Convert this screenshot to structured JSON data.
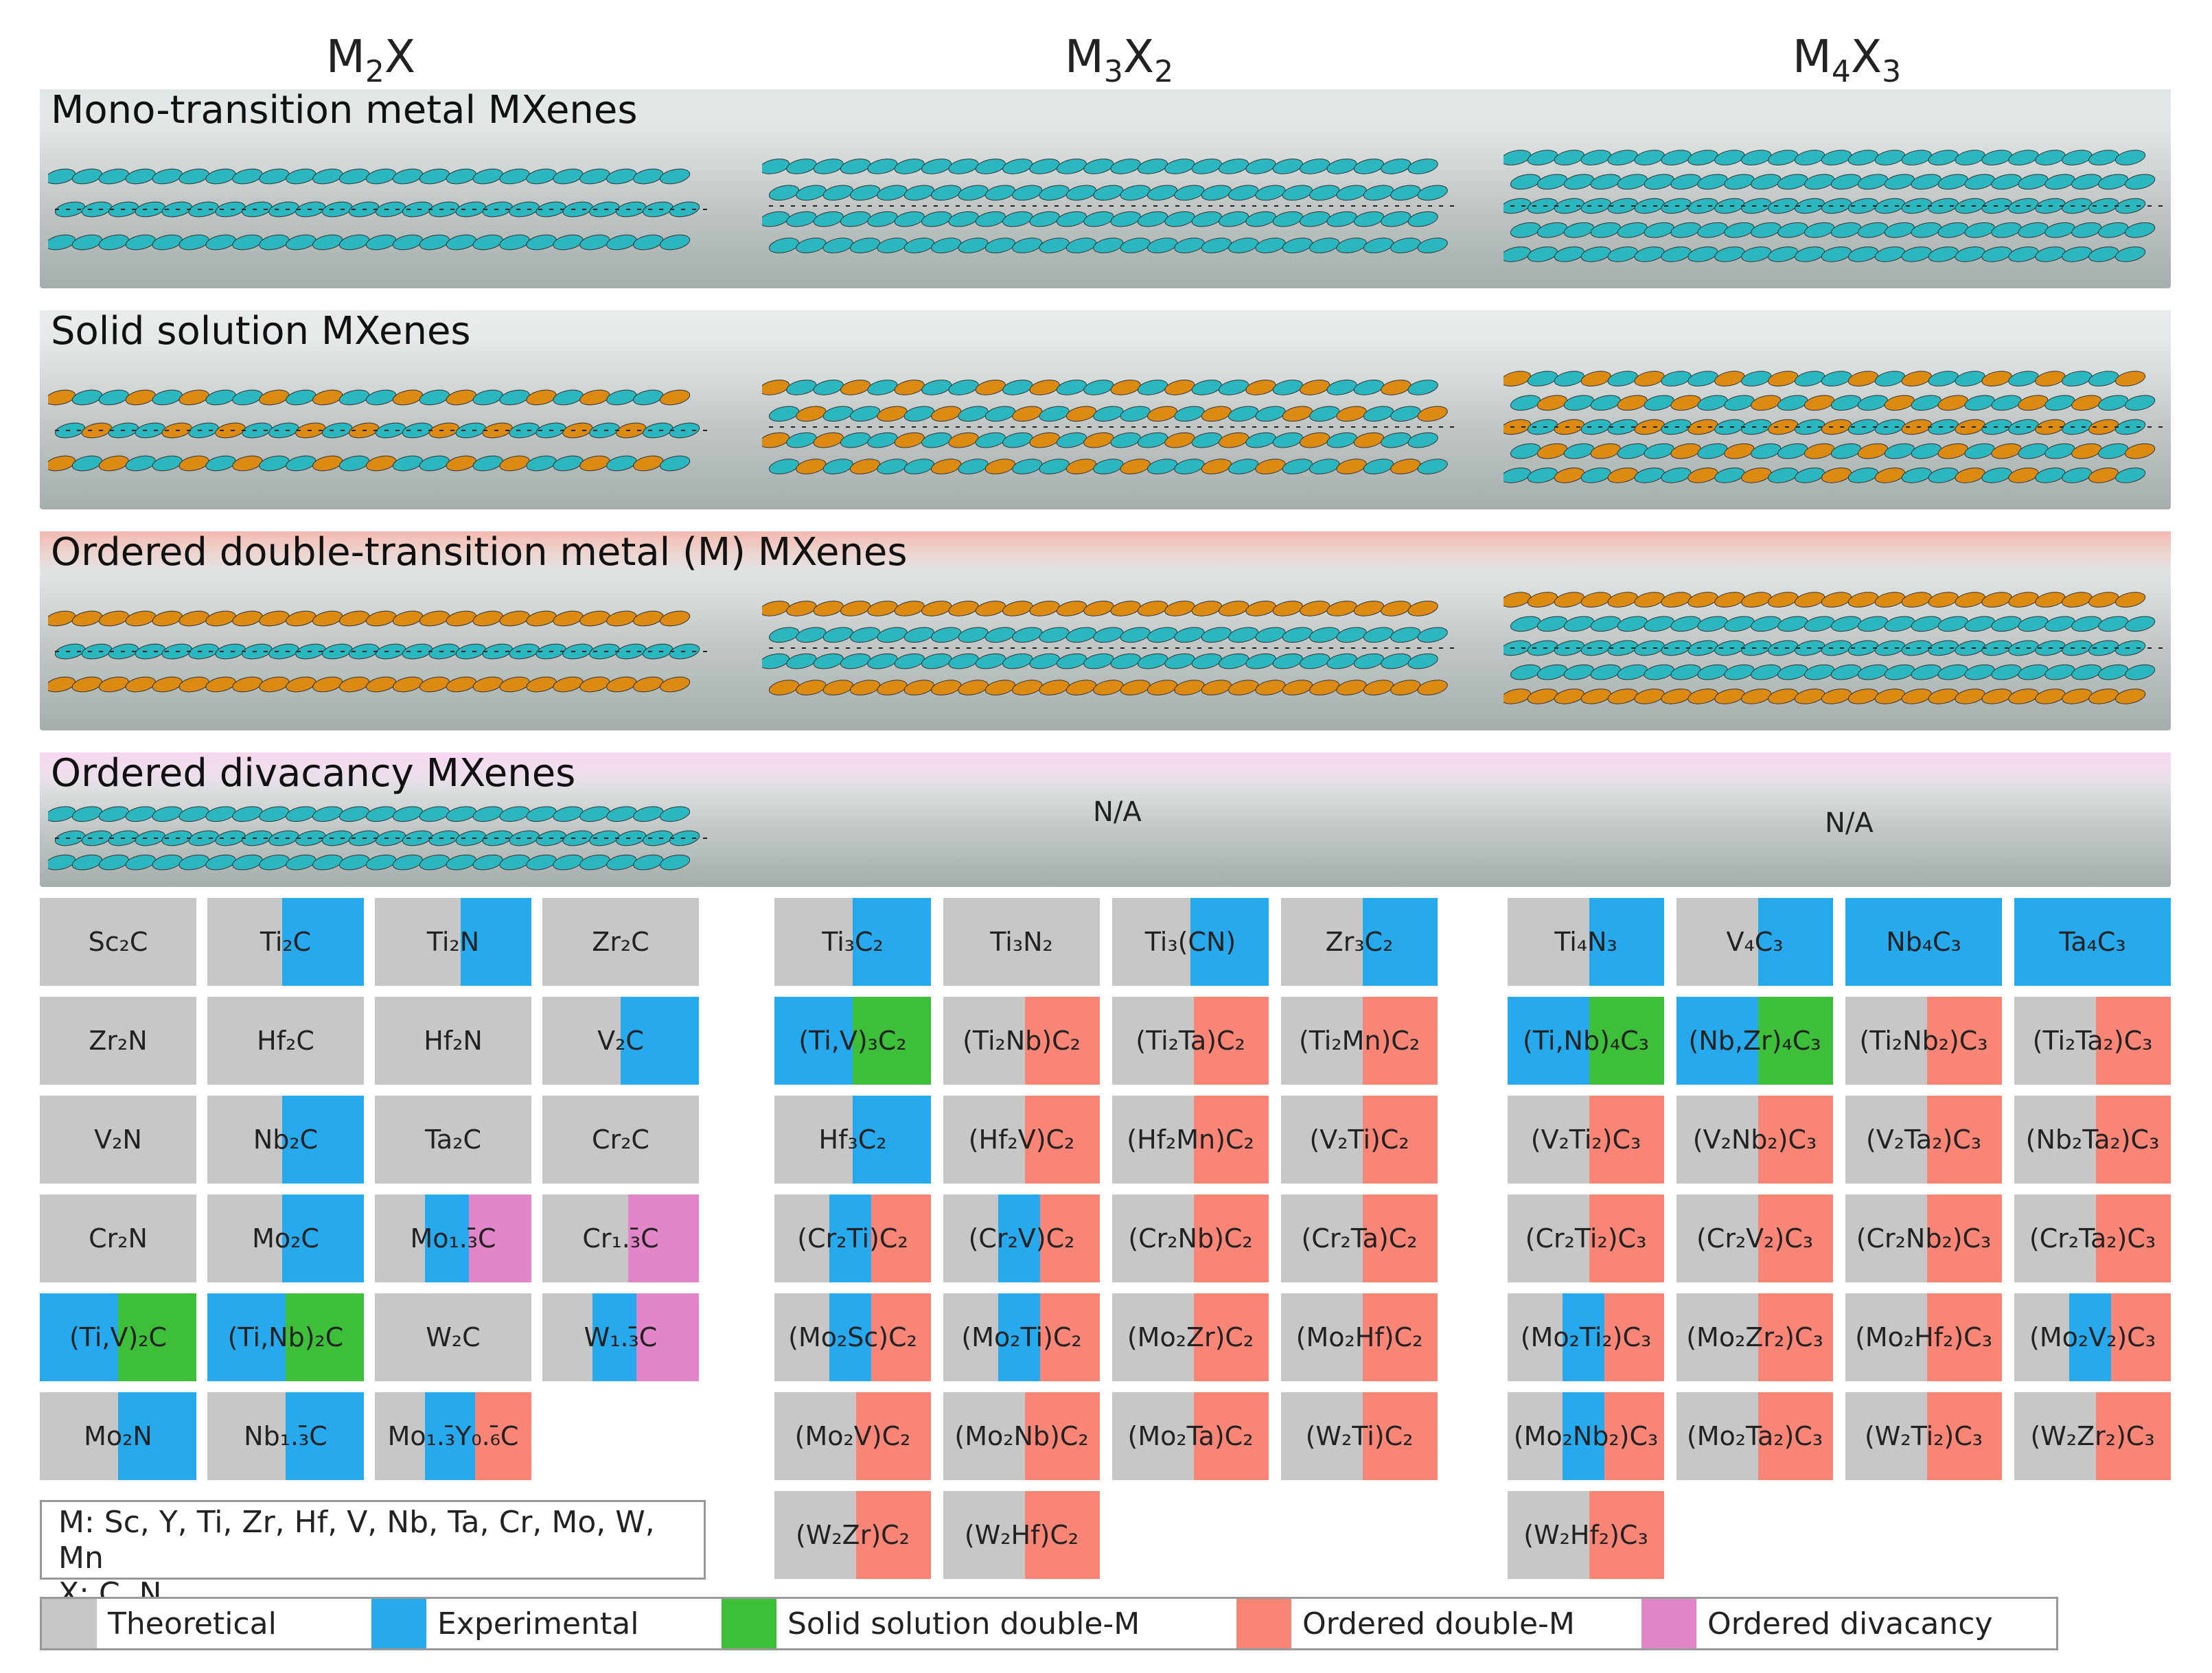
{
  "columns": [
    {
      "base": "M",
      "sub1": "2",
      "mid": "X",
      "sub2": ""
    },
    {
      "base": "M",
      "sub1": "3",
      "mid": "X",
      "sub2": "2"
    },
    {
      "base": "M",
      "sub1": "4",
      "mid": "X",
      "sub2": "3"
    }
  ],
  "bands": [
    {
      "title": "Mono-transition metal MXenes",
      "strip": "#dfe6e6"
    },
    {
      "title": "Solid solution MXenes",
      "strip": "#e6eaea"
    },
    {
      "title": "Ordered double-transition metal (M) MXenes",
      "strip": "#f3b9ae"
    },
    {
      "title": "Ordered divacancy MXenes",
      "strip": "#f6d6ef"
    }
  ],
  "na_label": "N/A",
  "colors": {
    "theoretical": "#c7c7c7",
    "experimental": "#27a9ee",
    "solid_solution": "#3dbf3a",
    "ordered": "#f98577",
    "divacancy": "#e386c9",
    "teal": "#2bb7bf",
    "orange": "#dc8a12"
  },
  "cells": {
    "m2x": [
      {
        "label": "Sc₂C",
        "segs": []
      },
      {
        "label": "Ti₂C",
        "segs": [
          [
            "experimental",
            0.48,
            1
          ]
        ]
      },
      {
        "label": "Ti₂N",
        "segs": [
          [
            "experimental",
            0.55,
            1
          ]
        ]
      },
      {
        "label": "Zr₂C",
        "segs": []
      },
      {
        "label": "Zr₂N",
        "segs": []
      },
      {
        "label": "Hf₂C",
        "segs": []
      },
      {
        "label": "Hf₂N",
        "segs": []
      },
      {
        "label": "V₂C",
        "segs": [
          [
            "experimental",
            0.5,
            1
          ]
        ]
      },
      {
        "label": "V₂N",
        "segs": []
      },
      {
        "label": "Nb₂C",
        "segs": [
          [
            "experimental",
            0.48,
            1
          ]
        ]
      },
      {
        "label": "Ta₂C",
        "segs": []
      },
      {
        "label": "Cr₂C",
        "segs": []
      },
      {
        "label": "Cr₂N",
        "segs": []
      },
      {
        "label": "Mo₂C",
        "segs": [
          [
            "experimental",
            0.48,
            1
          ]
        ]
      },
      {
        "label": "Mo₁.₃̄C",
        "segs": [
          [
            "experimental",
            0.32,
            0.6
          ],
          [
            "divacancy",
            0.6,
            1
          ]
        ]
      },
      {
        "label": "Cr₁.₃̄C",
        "segs": [
          [
            "divacancy",
            0.55,
            1
          ]
        ]
      },
      {
        "label": "(Ti,V)₂C",
        "segs": [
          [
            "experimental",
            0,
            0.5
          ],
          [
            "solid_solution",
            0.5,
            1
          ]
        ]
      },
      {
        "label": "(Ti,Nb)₂C",
        "segs": [
          [
            "experimental",
            0,
            0.5
          ],
          [
            "solid_solution",
            0.5,
            1
          ]
        ]
      },
      {
        "label": "W₂C",
        "segs": []
      },
      {
        "label": "W₁.₃̄C",
        "segs": [
          [
            "experimental",
            0.32,
            0.6
          ],
          [
            "divacancy",
            0.6,
            1
          ]
        ]
      },
      {
        "label": "Mo₂N",
        "segs": [
          [
            "experimental",
            0.5,
            1
          ]
        ]
      },
      {
        "label": "Nb₁.₃̄C",
        "segs": [
          [
            "experimental",
            0.5,
            1
          ]
        ]
      },
      {
        "label": "Mo₁.₃̄Y₀.₆̄C",
        "segs": [
          [
            "experimental",
            0.32,
            0.64
          ],
          [
            "ordered",
            0.64,
            1
          ]
        ]
      }
    ],
    "m3x2": [
      {
        "label": "Ti₃C₂",
        "segs": [
          [
            "experimental",
            0.5,
            1
          ]
        ]
      },
      {
        "label": "Ti₃N₂",
        "segs": []
      },
      {
        "label": "Ti₃(CN)",
        "segs": [
          [
            "experimental",
            0.5,
            1
          ]
        ]
      },
      {
        "label": "Zr₃C₂",
        "segs": [
          [
            "experimental",
            0.52,
            1
          ]
        ]
      },
      {
        "label": "(Ti,V)₃C₂",
        "segs": [
          [
            "experimental",
            0,
            0.5
          ],
          [
            "solid_solution",
            0.5,
            1
          ]
        ]
      },
      {
        "label": "(Ti₂Nb)C₂",
        "segs": [
          [
            "ordered",
            0.52,
            1
          ]
        ]
      },
      {
        "label": "(Ti₂Ta)C₂",
        "segs": [
          [
            "ordered",
            0.52,
            1
          ]
        ]
      },
      {
        "label": "(Ti₂Mn)C₂",
        "segs": [
          [
            "ordered",
            0.52,
            1
          ]
        ]
      },
      {
        "label": "Hf₃C₂",
        "segs": [
          [
            "experimental",
            0.5,
            1
          ]
        ]
      },
      {
        "label": "(Hf₂V)C₂",
        "segs": [
          [
            "ordered",
            0.52,
            1
          ]
        ]
      },
      {
        "label": "(Hf₂Mn)C₂",
        "segs": [
          [
            "ordered",
            0.52,
            1
          ]
        ]
      },
      {
        "label": "(V₂Ti)C₂",
        "segs": [
          [
            "ordered",
            0.52,
            1
          ]
        ]
      },
      {
        "label": "(Cr₂Ti)C₂",
        "segs": [
          [
            "experimental",
            0.35,
            0.62
          ],
          [
            "ordered",
            0.62,
            1
          ]
        ]
      },
      {
        "label": "(Cr₂V)C₂",
        "segs": [
          [
            "experimental",
            0.35,
            0.62
          ],
          [
            "ordered",
            0.62,
            1
          ]
        ]
      },
      {
        "label": "(Cr₂Nb)C₂",
        "segs": [
          [
            "ordered",
            0.52,
            1
          ]
        ]
      },
      {
        "label": "(Cr₂Ta)C₂",
        "segs": [
          [
            "ordered",
            0.52,
            1
          ]
        ]
      },
      {
        "label": "(Mo₂Sc)C₂",
        "segs": [
          [
            "experimental",
            0.35,
            0.62
          ],
          [
            "ordered",
            0.62,
            1
          ]
        ]
      },
      {
        "label": "(Mo₂Ti)C₂",
        "segs": [
          [
            "experimental",
            0.35,
            0.62
          ],
          [
            "ordered",
            0.62,
            1
          ]
        ]
      },
      {
        "label": "(Mo₂Zr)C₂",
        "segs": [
          [
            "ordered",
            0.52,
            1
          ]
        ]
      },
      {
        "label": "(Mo₂Hf)C₂",
        "segs": [
          [
            "ordered",
            0.52,
            1
          ]
        ]
      },
      {
        "label": "(Mo₂V)C₂",
        "segs": [
          [
            "ordered",
            0.52,
            1
          ]
        ]
      },
      {
        "label": "(Mo₂Nb)C₂",
        "segs": [
          [
            "ordered",
            0.52,
            1
          ]
        ]
      },
      {
        "label": "(Mo₂Ta)C₂",
        "segs": [
          [
            "ordered",
            0.52,
            1
          ]
        ]
      },
      {
        "label": "(W₂Ti)C₂",
        "segs": [
          [
            "ordered",
            0.52,
            1
          ]
        ]
      },
      {
        "label": "(W₂Zr)C₂",
        "segs": [
          [
            "ordered",
            0.52,
            1
          ]
        ]
      },
      {
        "label": "(W₂Hf)C₂",
        "segs": [
          [
            "ordered",
            0.52,
            1
          ]
        ]
      }
    ],
    "m4x3": [
      {
        "label": "Ti₄N₃",
        "segs": [
          [
            "experimental",
            0.52,
            1
          ]
        ]
      },
      {
        "label": "V₄C₃",
        "segs": [
          [
            "experimental",
            0.52,
            1
          ]
        ]
      },
      {
        "label": "Nb₄C₃",
        "segs": [
          [
            "experimental",
            0,
            1
          ]
        ]
      },
      {
        "label": "Ta₄C₃",
        "segs": [
          [
            "experimental",
            0,
            1
          ]
        ]
      },
      {
        "label": "(Ti,Nb)₄C₃",
        "segs": [
          [
            "experimental",
            0,
            0.52
          ],
          [
            "solid_solution",
            0.52,
            1
          ]
        ]
      },
      {
        "label": "(Nb,Zr)₄C₃",
        "segs": [
          [
            "experimental",
            0,
            0.52
          ],
          [
            "solid_solution",
            0.52,
            1
          ]
        ]
      },
      {
        "label": "(Ti₂Nb₂)C₃",
        "segs": [
          [
            "ordered",
            0.52,
            1
          ]
        ]
      },
      {
        "label": "(Ti₂Ta₂)C₃",
        "segs": [
          [
            "ordered",
            0.52,
            1
          ]
        ]
      },
      {
        "label": "(V₂Ti₂)C₃",
        "segs": [
          [
            "ordered",
            0.52,
            1
          ]
        ]
      },
      {
        "label": "(V₂Nb₂)C₃",
        "segs": [
          [
            "ordered",
            0.52,
            1
          ]
        ]
      },
      {
        "label": "(V₂Ta₂)C₃",
        "segs": [
          [
            "ordered",
            0.52,
            1
          ]
        ]
      },
      {
        "label": "(Nb₂Ta₂)C₃",
        "segs": [
          [
            "ordered",
            0.52,
            1
          ]
        ]
      },
      {
        "label": "(Cr₂Ti₂)C₃",
        "segs": [
          [
            "ordered",
            0.52,
            1
          ]
        ]
      },
      {
        "label": "(Cr₂V₂)C₃",
        "segs": [
          [
            "ordered",
            0.52,
            1
          ]
        ]
      },
      {
        "label": "(Cr₂Nb₂)C₃",
        "segs": [
          [
            "ordered",
            0.52,
            1
          ]
        ]
      },
      {
        "label": "(Cr₂Ta₂)C₃",
        "segs": [
          [
            "ordered",
            0.52,
            1
          ]
        ]
      },
      {
        "label": "(Mo₂Ti₂)C₃",
        "segs": [
          [
            "experimental",
            0.35,
            0.62
          ],
          [
            "ordered",
            0.62,
            1
          ]
        ]
      },
      {
        "label": "(Mo₂Zr₂)C₃",
        "segs": [
          [
            "ordered",
            0.52,
            1
          ]
        ]
      },
      {
        "label": "(Mo₂Hf₂)C₃",
        "segs": [
          [
            "ordered",
            0.52,
            1
          ]
        ]
      },
      {
        "label": "(Mo₂V₂)C₃",
        "segs": [
          [
            "experimental",
            0.35,
            0.62
          ],
          [
            "ordered",
            0.62,
            1
          ]
        ]
      },
      {
        "label": "(Mo₂Nb₂)C₃",
        "segs": [
          [
            "experimental",
            0.35,
            0.62
          ],
          [
            "ordered",
            0.62,
            1
          ]
        ]
      },
      {
        "label": "(Mo₂Ta₂)C₃",
        "segs": [
          [
            "ordered",
            0.52,
            1
          ]
        ]
      },
      {
        "label": "(W₂Ti₂)C₃",
        "segs": [
          [
            "ordered",
            0.52,
            1
          ]
        ]
      },
      {
        "label": "(W₂Zr₂)C₃",
        "segs": [
          [
            "ordered",
            0.52,
            1
          ]
        ]
      },
      {
        "label": "(W₂Hf₂)C₃",
        "segs": [
          [
            "ordered",
            0.52,
            1
          ]
        ]
      }
    ]
  },
  "elements_box": {
    "m_line": "M: Sc, Y, Ti, Zr, Hf, V, Nb, Ta, Cr, Mo, W, Mn",
    "x_line": "X: C, N"
  },
  "legend": [
    {
      "label": "Theoretical",
      "color": "theoretical"
    },
    {
      "label": "Experimental",
      "color": "experimental"
    },
    {
      "label": "Solid solution double-M",
      "color": "solid_solution"
    },
    {
      "label": "Ordered double-M",
      "color": "ordered"
    },
    {
      "label": "Ordered divacancy",
      "color": "divacancy"
    }
  ]
}
